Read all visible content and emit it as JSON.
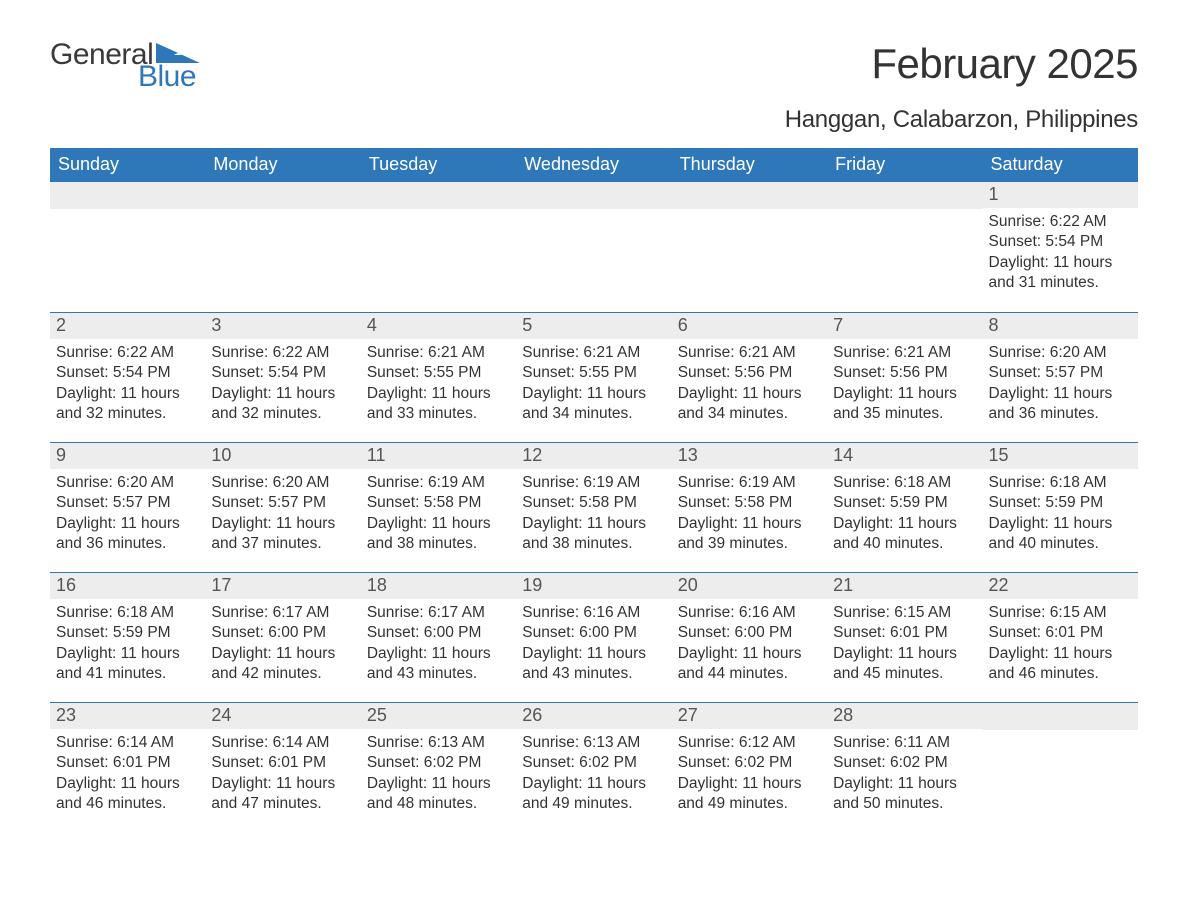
{
  "brand": {
    "word1": "General",
    "word2": "Blue",
    "accent_color": "#2e77b8",
    "text_color": "#3a3a3a"
  },
  "title": "February 2025",
  "location": "Hanggan, Calabarzon, Philippines",
  "colors": {
    "header_bg": "#2e77b8",
    "header_text": "#ffffff",
    "day_num_bg": "#ededed",
    "body_text": "#333333",
    "rule": "#2e77b8",
    "page_bg": "#ffffff"
  },
  "fonts": {
    "title_size": 42,
    "location_size": 24,
    "dow_size": 18,
    "daynum_size": 18,
    "body_size": 15.5
  },
  "days_of_week": [
    "Sunday",
    "Monday",
    "Tuesday",
    "Wednesday",
    "Thursday",
    "Friday",
    "Saturday"
  ],
  "weeks": [
    [
      null,
      null,
      null,
      null,
      null,
      null,
      {
        "n": "1",
        "sunrise": "Sunrise: 6:22 AM",
        "sunset": "Sunset: 5:54 PM",
        "daylight1": "Daylight: 11 hours",
        "daylight2": "and 31 minutes."
      }
    ],
    [
      {
        "n": "2",
        "sunrise": "Sunrise: 6:22 AM",
        "sunset": "Sunset: 5:54 PM",
        "daylight1": "Daylight: 11 hours",
        "daylight2": "and 32 minutes."
      },
      {
        "n": "3",
        "sunrise": "Sunrise: 6:22 AM",
        "sunset": "Sunset: 5:54 PM",
        "daylight1": "Daylight: 11 hours",
        "daylight2": "and 32 minutes."
      },
      {
        "n": "4",
        "sunrise": "Sunrise: 6:21 AM",
        "sunset": "Sunset: 5:55 PM",
        "daylight1": "Daylight: 11 hours",
        "daylight2": "and 33 minutes."
      },
      {
        "n": "5",
        "sunrise": "Sunrise: 6:21 AM",
        "sunset": "Sunset: 5:55 PM",
        "daylight1": "Daylight: 11 hours",
        "daylight2": "and 34 minutes."
      },
      {
        "n": "6",
        "sunrise": "Sunrise: 6:21 AM",
        "sunset": "Sunset: 5:56 PM",
        "daylight1": "Daylight: 11 hours",
        "daylight2": "and 34 minutes."
      },
      {
        "n": "7",
        "sunrise": "Sunrise: 6:21 AM",
        "sunset": "Sunset: 5:56 PM",
        "daylight1": "Daylight: 11 hours",
        "daylight2": "and 35 minutes."
      },
      {
        "n": "8",
        "sunrise": "Sunrise: 6:20 AM",
        "sunset": "Sunset: 5:57 PM",
        "daylight1": "Daylight: 11 hours",
        "daylight2": "and 36 minutes."
      }
    ],
    [
      {
        "n": "9",
        "sunrise": "Sunrise: 6:20 AM",
        "sunset": "Sunset: 5:57 PM",
        "daylight1": "Daylight: 11 hours",
        "daylight2": "and 36 minutes."
      },
      {
        "n": "10",
        "sunrise": "Sunrise: 6:20 AM",
        "sunset": "Sunset: 5:57 PM",
        "daylight1": "Daylight: 11 hours",
        "daylight2": "and 37 minutes."
      },
      {
        "n": "11",
        "sunrise": "Sunrise: 6:19 AM",
        "sunset": "Sunset: 5:58 PM",
        "daylight1": "Daylight: 11 hours",
        "daylight2": "and 38 minutes."
      },
      {
        "n": "12",
        "sunrise": "Sunrise: 6:19 AM",
        "sunset": "Sunset: 5:58 PM",
        "daylight1": "Daylight: 11 hours",
        "daylight2": "and 38 minutes."
      },
      {
        "n": "13",
        "sunrise": "Sunrise: 6:19 AM",
        "sunset": "Sunset: 5:58 PM",
        "daylight1": "Daylight: 11 hours",
        "daylight2": "and 39 minutes."
      },
      {
        "n": "14",
        "sunrise": "Sunrise: 6:18 AM",
        "sunset": "Sunset: 5:59 PM",
        "daylight1": "Daylight: 11 hours",
        "daylight2": "and 40 minutes."
      },
      {
        "n": "15",
        "sunrise": "Sunrise: 6:18 AM",
        "sunset": "Sunset: 5:59 PM",
        "daylight1": "Daylight: 11 hours",
        "daylight2": "and 40 minutes."
      }
    ],
    [
      {
        "n": "16",
        "sunrise": "Sunrise: 6:18 AM",
        "sunset": "Sunset: 5:59 PM",
        "daylight1": "Daylight: 11 hours",
        "daylight2": "and 41 minutes."
      },
      {
        "n": "17",
        "sunrise": "Sunrise: 6:17 AM",
        "sunset": "Sunset: 6:00 PM",
        "daylight1": "Daylight: 11 hours",
        "daylight2": "and 42 minutes."
      },
      {
        "n": "18",
        "sunrise": "Sunrise: 6:17 AM",
        "sunset": "Sunset: 6:00 PM",
        "daylight1": "Daylight: 11 hours",
        "daylight2": "and 43 minutes."
      },
      {
        "n": "19",
        "sunrise": "Sunrise: 6:16 AM",
        "sunset": "Sunset: 6:00 PM",
        "daylight1": "Daylight: 11 hours",
        "daylight2": "and 43 minutes."
      },
      {
        "n": "20",
        "sunrise": "Sunrise: 6:16 AM",
        "sunset": "Sunset: 6:00 PM",
        "daylight1": "Daylight: 11 hours",
        "daylight2": "and 44 minutes."
      },
      {
        "n": "21",
        "sunrise": "Sunrise: 6:15 AM",
        "sunset": "Sunset: 6:01 PM",
        "daylight1": "Daylight: 11 hours",
        "daylight2": "and 45 minutes."
      },
      {
        "n": "22",
        "sunrise": "Sunrise: 6:15 AM",
        "sunset": "Sunset: 6:01 PM",
        "daylight1": "Daylight: 11 hours",
        "daylight2": "and 46 minutes."
      }
    ],
    [
      {
        "n": "23",
        "sunrise": "Sunrise: 6:14 AM",
        "sunset": "Sunset: 6:01 PM",
        "daylight1": "Daylight: 11 hours",
        "daylight2": "and 46 minutes."
      },
      {
        "n": "24",
        "sunrise": "Sunrise: 6:14 AM",
        "sunset": "Sunset: 6:01 PM",
        "daylight1": "Daylight: 11 hours",
        "daylight2": "and 47 minutes."
      },
      {
        "n": "25",
        "sunrise": "Sunrise: 6:13 AM",
        "sunset": "Sunset: 6:02 PM",
        "daylight1": "Daylight: 11 hours",
        "daylight2": "and 48 minutes."
      },
      {
        "n": "26",
        "sunrise": "Sunrise: 6:13 AM",
        "sunset": "Sunset: 6:02 PM",
        "daylight1": "Daylight: 11 hours",
        "daylight2": "and 49 minutes."
      },
      {
        "n": "27",
        "sunrise": "Sunrise: 6:12 AM",
        "sunset": "Sunset: 6:02 PM",
        "daylight1": "Daylight: 11 hours",
        "daylight2": "and 49 minutes."
      },
      {
        "n": "28",
        "sunrise": "Sunrise: 6:11 AM",
        "sunset": "Sunset: 6:02 PM",
        "daylight1": "Daylight: 11 hours",
        "daylight2": "and 50 minutes."
      },
      null
    ]
  ]
}
